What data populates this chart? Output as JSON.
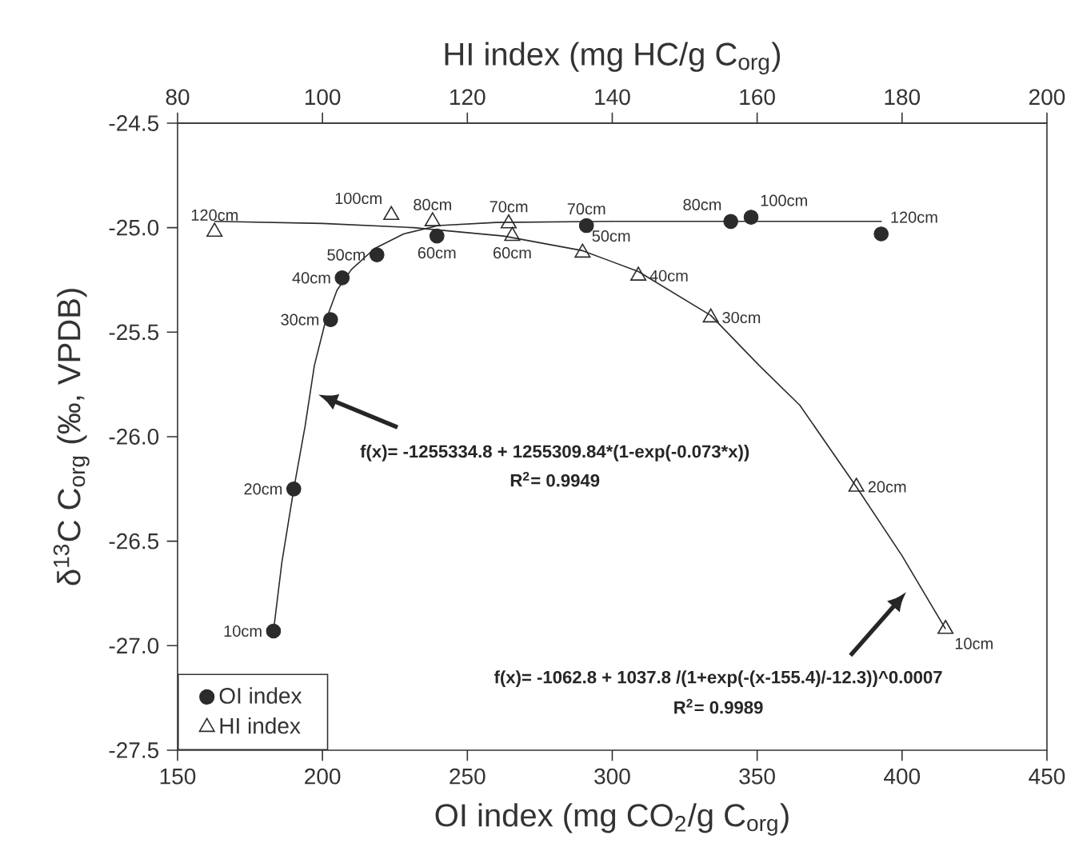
{
  "chart_data": {
    "type": "scatter",
    "xlabel": "OI index (mg CO$_{2}$/g C$_{org}$)",
    "x2label": "HI index (mg HC/g C$_{org}$)",
    "ylabel": "δ$^{13}$C C$_{org}$ (‰, VPDB)",
    "xlim": [
      150,
      450
    ],
    "xticks": [
      150,
      200,
      250,
      300,
      350,
      400,
      450
    ],
    "x2lim": [
      80,
      200
    ],
    "x2ticks": [
      80,
      100,
      120,
      140,
      160,
      180,
      200
    ],
    "ylim": [
      -27.5,
      -24.5
    ],
    "yticks": [
      {
        "value": -27.5,
        "label": "-27.5"
      },
      {
        "value": -27.0,
        "label": "-27.0"
      },
      {
        "value": -26.5,
        "label": "-26.5"
      },
      {
        "value": -26.0,
        "label": "-26.0"
      },
      {
        "value": -25.5,
        "label": "-25.5"
      },
      {
        "value": -25.0,
        "label": "-25.0"
      },
      {
        "value": -24.5,
        "label": "-24.5"
      }
    ],
    "legend": "bottom left",
    "annotations": [
      "f(x)= -1255334.8 + 1255309.84*(1-exp(-0.073*x))",
      "R$^{2}$= 0.9949",
      "f(x)= -1062.8 + 1037.8 /(1+exp(-(x-155.4)/-12.3))^0.0007",
      "R$^{2}$= 0.9989",
      {
        "text": "10cm",
        "x": 183.1,
        "y": -26.93
      },
      {
        "text": "20cm",
        "x": 190.1,
        "y": -26.25
      },
      {
        "text": "30cm",
        "x": 202.8,
        "y": -25.44
      },
      {
        "text": "40cm",
        "x": 206.8,
        "y": -25.24
      },
      {
        "text": "50cm",
        "x": 218.8,
        "y": -25.13
      },
      {
        "text": "60cm",
        "x": 239.5,
        "y": -25.04
      },
      {
        "text": "70cm",
        "x": 291.1,
        "y": -24.99
      },
      {
        "text": "80cm",
        "x": 340.9,
        "y": -24.97
      },
      {
        "text": "100cm",
        "x": 347.9,
        "y": -24.95
      },
      {
        "text": "120cm",
        "x": 392.8,
        "y": -25.03
      },
      {
        "text": "10cm",
        "x": 415.0,
        "y": -26.92
      },
      {
        "text": "20cm",
        "x": 384.3,
        "y": -26.24
      },
      {
        "text": "30cm",
        "x": 334.0,
        "y": -25.43
      },
      {
        "text": "40cm",
        "x": 309.0,
        "y": -25.23
      },
      {
        "text": "50cm",
        "x": 289.8,
        "y": -25.12
      },
      {
        "text": "60cm",
        "x": 265.5,
        "y": -25.04
      },
      {
        "text": "70cm",
        "x": 264.3,
        "y": -24.98
      },
      {
        "text": "80cm",
        "x": 238.0,
        "y": -24.97
      },
      {
        "text": "100cm",
        "x": 223.8,
        "y": -24.94
      },
      {
        "text": "120cm",
        "x": 162.8,
        "y": -25.02
      }
    ],
    "series": [
      {
        "name": "OI index",
        "marker": "circle",
        "color": "#2b2b2b",
        "x": [
          183.1,
          190.1,
          202.8,
          206.8,
          218.8,
          239.5,
          291.1,
          340.9,
          347.9,
          392.8
        ],
        "values": [
          -26.93,
          -26.25,
          -25.44,
          -25.24,
          -25.13,
          -25.04,
          -24.99,
          -24.97,
          -24.95,
          -25.03
        ]
      },
      {
        "name": "HI index",
        "marker": "triangle",
        "axis": "x2",
        "color": "#2b2b2b",
        "x": [
          186.0,
          173.7,
          153.6,
          143.6,
          135.9,
          126.2,
          125.7,
          115.2,
          109.5,
          85.1
        ],
        "values": [
          -26.92,
          -26.24,
          -25.43,
          -25.23,
          -25.12,
          -25.04,
          -24.98,
          -24.97,
          -24.94,
          -25.02
        ]
      },
      {
        "type": "line",
        "color": "#2b2b2b",
        "x": [
          183.1,
          186,
          190.1,
          194,
          197.2,
          201,
          205,
          210,
          218,
          228,
          240,
          260,
          300,
          393
        ],
        "values": [
          -26.93,
          -26.6,
          -26.25,
          -25.95,
          -25.66,
          -25.45,
          -25.3,
          -25.2,
          -25.1,
          -25.03,
          -24.99,
          -24.975,
          -24.97,
          -24.97
        ]
      },
      {
        "type": "line",
        "axis": "x2",
        "color": "#2b2b2b",
        "x": [
          85.1,
          100,
          112.6,
          125,
          135.9,
          143.6,
          153.6,
          160.3,
          165.9,
          173.7,
          180,
          186
        ],
        "values": [
          -24.97,
          -24.98,
          -25.0,
          -25.04,
          -25.11,
          -25.21,
          -25.42,
          -25.66,
          -25.85,
          -26.24,
          -26.57,
          -26.92
        ]
      }
    ]
  }
}
